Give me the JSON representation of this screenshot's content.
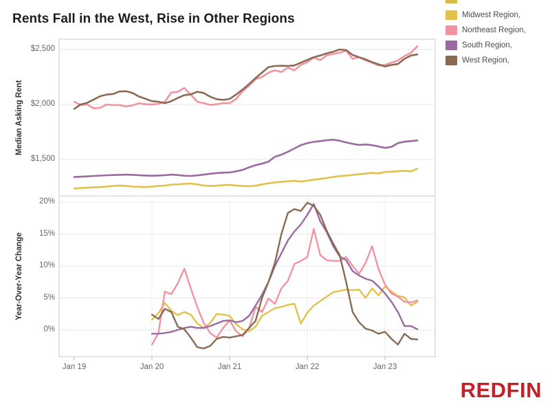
{
  "page": {
    "title": "Rents Fall in the West, Rise in Other Regions",
    "brand": "REDFIN",
    "brand_color": "#c22127"
  },
  "legend": {
    "clipped_swatch_color": "#d5bd49",
    "items": [
      {
        "label": "Midwest Region,",
        "color": "#e0c24b"
      },
      {
        "label": "Northeast Region,",
        "color": "#f293a0"
      },
      {
        "label": "South Region,",
        "color": "#9a6aa1"
      },
      {
        "label": "West Region,",
        "color": "#8a6a53"
      }
    ]
  },
  "chart_data": {
    "type": "line",
    "x": {
      "unit": "month",
      "months_total": 54,
      "ticks": [
        {
          "label": "Jan 19",
          "month_index": 0
        },
        {
          "label": "Jan 20",
          "month_index": 12
        },
        {
          "label": "Jan 21",
          "month_index": 24
        },
        {
          "label": "Jan 22",
          "month_index": 36
        },
        {
          "label": "Jan 23",
          "month_index": 48
        }
      ]
    },
    "panels": [
      {
        "ylabel": "Median Asking Rent",
        "ylim": [
          1150,
          2600
        ],
        "grid": true,
        "yticks": [
          {
            "label": "$2,500",
            "value": 2500
          },
          {
            "label": "$2,000",
            "value": 2000
          },
          {
            "label": "$1,500",
            "value": 1500
          }
        ],
        "series": [
          {
            "name": "Midwest Region",
            "color": "#e0c24b",
            "start_month": 0,
            "values": [
              1235,
              1240,
              1243,
              1246,
              1249,
              1253,
              1259,
              1263,
              1259,
              1253,
              1251,
              1249,
              1253,
              1259,
              1263,
              1271,
              1273,
              1279,
              1281,
              1273,
              1263,
              1259,
              1261,
              1266,
              1269,
              1263,
              1259,
              1256,
              1261,
              1273,
              1283,
              1291,
              1296,
              1301,
              1306,
              1299,
              1307,
              1316,
              1323,
              1331,
              1341,
              1349,
              1353,
              1359,
              1366,
              1371,
              1379,
              1373,
              1386,
              1389,
              1393,
              1396,
              1391,
              1416
            ]
          },
          {
            "name": "Northeast Region",
            "color": "#f293a0",
            "start_month": 0,
            "values": [
              2025,
              1995,
              2000,
              1965,
              1970,
              2000,
              1995,
              1995,
              1982,
              1992,
              2010,
              2002,
              2000,
              2005,
              2025,
              2110,
              2115,
              2150,
              2090,
              2025,
              2012,
              1995,
              2002,
              2012,
              2012,
              2050,
              2120,
              2170,
              2230,
              2250,
              2290,
              2310,
              2295,
              2335,
              2310,
              2360,
              2384,
              2427,
              2403,
              2446,
              2460,
              2470,
              2490,
              2415,
              2430,
              2400,
              2380,
              2355,
              2360,
              2380,
              2400,
              2440,
              2470,
              2530
            ]
          },
          {
            "name": "South Region",
            "color": "#9a6aa1",
            "start_month": 0,
            "values": [
              1340,
              1343,
              1346,
              1350,
              1353,
              1356,
              1358,
              1360,
              1362,
              1360,
              1357,
              1354,
              1352,
              1354,
              1357,
              1362,
              1358,
              1352,
              1350,
              1355,
              1362,
              1370,
              1376,
              1380,
              1382,
              1392,
              1405,
              1428,
              1448,
              1462,
              1480,
              1525,
              1543,
              1570,
              1600,
              1630,
              1649,
              1660,
              1667,
              1675,
              1680,
              1670,
              1655,
              1642,
              1632,
              1636,
              1630,
              1618,
              1605,
              1615,
              1649,
              1661,
              1667,
              1673
            ]
          },
          {
            "name": "West Region",
            "color": "#8a6a53",
            "start_month": 0,
            "values": [
              1960,
              2000,
              2015,
              2045,
              2075,
              2090,
              2095,
              2118,
              2120,
              2105,
              2072,
              2052,
              2030,
              2025,
              2012,
              2030,
              2060,
              2085,
              2092,
              2115,
              2105,
              2070,
              2048,
              2042,
              2050,
              2090,
              2135,
              2186,
              2240,
              2290,
              2340,
              2350,
              2352,
              2350,
              2355,
              2380,
              2405,
              2430,
              2445,
              2465,
              2480,
              2500,
              2495,
              2450,
              2430,
              2410,
              2385,
              2365,
              2345,
              2360,
              2368,
              2415,
              2445,
              2455
            ]
          }
        ]
      },
      {
        "ylabel": "Year-Over-Year Change",
        "ylim": [
          -4.5,
          21.5
        ],
        "grid": true,
        "yticks": [
          {
            "label": "20%",
            "value": 20
          },
          {
            "label": "15%",
            "value": 15
          },
          {
            "label": "10%",
            "value": 10
          },
          {
            "label": "5%",
            "value": 5
          },
          {
            "label": "0%",
            "value": 0,
            "dotted": true
          }
        ],
        "series": [
          {
            "name": "Midwest Region",
            "color": "#e0c24b",
            "start_month": 12,
            "values": [
              1.6,
              2.6,
              4.2,
              3.0,
              2.3,
              2.8,
              2.4,
              1.0,
              0.3,
              1.1,
              2.5,
              2.4,
              2.2,
              0.9,
              0.1,
              -0.2,
              0.5,
              2.2,
              2.8,
              3.4,
              3.6,
              3.9,
              4.1,
              1.0,
              2.7,
              3.8,
              4.5,
              5.2,
              5.9,
              6.1,
              6.3,
              6.2,
              6.3,
              5.0,
              6.5,
              5.4,
              6.8,
              6.0,
              5.3,
              5.1,
              3.8,
              4.4
            ]
          },
          {
            "name": "Northeast Region",
            "color": "#f293a0",
            "start_month": 12,
            "values": [
              -2.3,
              -0.5,
              6.0,
              5.6,
              7.3,
              9.6,
              6.5,
              3.6,
              1.1,
              -0.5,
              -1.2,
              0.3,
              1.5,
              -0.2,
              -1.0,
              0.2,
              3.6,
              2.8,
              4.9,
              4.1,
              6.5,
              7.7,
              10.3,
              10.8,
              11.4,
              15.8,
              11.7,
              10.9,
              10.8,
              10.8,
              11.4,
              10.0,
              8.8,
              10.5,
              13.1,
              9.5,
              7.1,
              5.7,
              5.2,
              4.4,
              4.3,
              4.6
            ]
          },
          {
            "name": "South Region",
            "color": "#9a6aa1",
            "start_month": 12,
            "values": [
              -0.6,
              -0.6,
              -0.5,
              -0.3,
              0.0,
              0.3,
              0.5,
              0.3,
              0.3,
              0.6,
              1.0,
              1.4,
              1.5,
              1.2,
              1.4,
              2.2,
              3.8,
              5.5,
              7.5,
              10.0,
              12.0,
              14.0,
              15.4,
              16.5,
              18.0,
              19.7,
              17.0,
              15.3,
              13.1,
              11.5,
              10.9,
              9.2,
              8.5,
              8.0,
              7.7,
              6.8,
              5.7,
              4.4,
              2.8,
              0.6,
              0.6,
              0.1
            ]
          },
          {
            "name": "West Region",
            "color": "#8a6a53",
            "start_month": 12,
            "values": [
              2.4,
              1.7,
              3.3,
              2.8,
              0.5,
              0.1,
              -1.2,
              -2.7,
              -2.9,
              -2.5,
              -1.4,
              -1.1,
              -1.2,
              -1.0,
              -0.8,
              0.3,
              1.4,
              5.0,
              7.5,
              10.5,
              15.0,
              18.3,
              18.9,
              18.6,
              19.9,
              19.4,
              18.0,
              15.5,
              13.5,
              11.7,
              7.5,
              2.8,
              1.2,
              0.2,
              -0.1,
              -0.6,
              -0.3,
              -1.4,
              -2.3,
              -0.6,
              -1.4,
              -1.5
            ]
          }
        ]
      }
    ]
  }
}
